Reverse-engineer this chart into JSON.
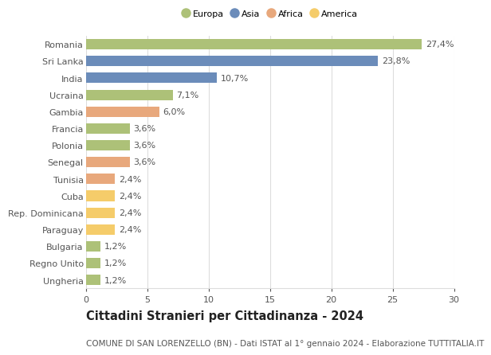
{
  "title": "Cittadini Stranieri per Cittadinanza - 2024",
  "subtitle": "COMUNE DI SAN LORENZELLO (BN) - Dati ISTAT al 1° gennaio 2024 - Elaborazione TUTTITALIA.IT",
  "countries": [
    "Romania",
    "Sri Lanka",
    "India",
    "Ucraina",
    "Gambia",
    "Francia",
    "Polonia",
    "Senegal",
    "Tunisia",
    "Cuba",
    "Rep. Dominicana",
    "Paraguay",
    "Bulgaria",
    "Regno Unito",
    "Ungheria"
  ],
  "values": [
    27.4,
    23.8,
    10.7,
    7.1,
    6.0,
    3.6,
    3.6,
    3.6,
    2.4,
    2.4,
    2.4,
    2.4,
    1.2,
    1.2,
    1.2
  ],
  "labels": [
    "27,4%",
    "23,8%",
    "10,7%",
    "7,1%",
    "6,0%",
    "3,6%",
    "3,6%",
    "3,6%",
    "2,4%",
    "2,4%",
    "2,4%",
    "2,4%",
    "1,2%",
    "1,2%",
    "1,2%"
  ],
  "continents": [
    "Europa",
    "Asia",
    "Asia",
    "Europa",
    "Africa",
    "Europa",
    "Europa",
    "Africa",
    "Africa",
    "America",
    "America",
    "America",
    "Europa",
    "Europa",
    "Europa"
  ],
  "colors": {
    "Europa": "#adc178",
    "Asia": "#6b8cba",
    "Africa": "#e8a87c",
    "America": "#f5cc6a"
  },
  "legend_order": [
    "Europa",
    "Asia",
    "Africa",
    "America"
  ],
  "legend_colors": [
    "#adc178",
    "#6b8cba",
    "#e8a87c",
    "#f5cc6a"
  ],
  "xlim": [
    0,
    30
  ],
  "xticks": [
    0,
    5,
    10,
    15,
    20,
    25,
    30
  ],
  "background_color": "#ffffff",
  "grid_color": "#dddddd",
  "bar_height": 0.62,
  "label_fontsize": 8.0,
  "tick_fontsize": 8.0,
  "title_fontsize": 10.5,
  "subtitle_fontsize": 7.5,
  "text_color": "#555555",
  "title_color": "#222222"
}
